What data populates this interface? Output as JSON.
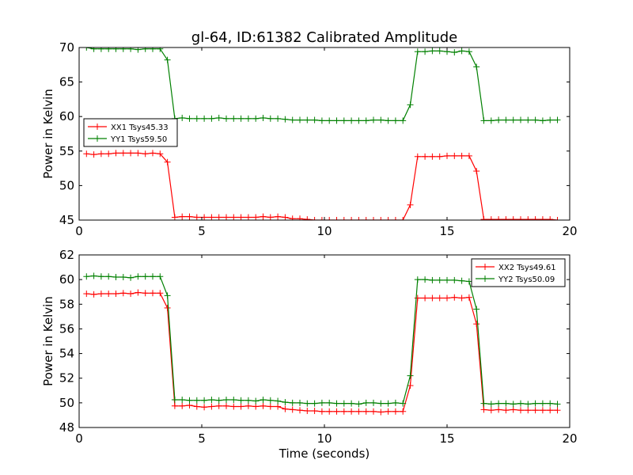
{
  "title": "gl-64, ID:61382 Calibrated Amplitude",
  "colors": {
    "xx": "#ff0000",
    "yy": "#008000"
  },
  "chart_data": [
    {
      "type": "line",
      "xlabel": "",
      "ylabel": "Power in Kelvin",
      "xlim": [
        0,
        20
      ],
      "ylim": [
        45,
        70
      ],
      "xticks": [
        0,
        5,
        10,
        15,
        20
      ],
      "yticks": [
        45,
        50,
        55,
        60,
        65,
        70
      ],
      "grid": false,
      "legend_position": "center-left",
      "x": [
        0.3,
        0.6,
        0.9,
        1.2,
        1.5,
        1.8,
        2.1,
        2.4,
        2.7,
        3.0,
        3.3,
        3.6,
        3.9,
        4.2,
        4.5,
        4.8,
        5.1,
        5.4,
        5.7,
        6.0,
        6.3,
        6.6,
        6.9,
        7.2,
        7.5,
        7.8,
        8.1,
        8.4,
        8.7,
        9.0,
        9.3,
        9.6,
        9.9,
        10.2,
        10.5,
        10.8,
        11.1,
        11.4,
        11.7,
        12.0,
        12.3,
        12.6,
        12.9,
        13.2,
        13.5,
        13.8,
        14.1,
        14.4,
        14.7,
        15.0,
        15.3,
        15.6,
        15.9,
        16.2,
        16.5,
        16.8,
        17.1,
        17.4,
        17.7,
        18.0,
        18.3,
        18.6,
        18.9,
        19.2,
        19.5
      ],
      "series": [
        {
          "name": "XX1 Tsys45.33",
          "color": "#ff0000",
          "values": [
            54.6,
            54.5,
            54.6,
            54.6,
            54.7,
            54.7,
            54.7,
            54.7,
            54.6,
            54.7,
            54.6,
            53.4,
            45.4,
            45.5,
            45.5,
            45.4,
            45.4,
            45.4,
            45.4,
            45.4,
            45.4,
            45.4,
            45.4,
            45.4,
            45.5,
            45.4,
            45.5,
            45.4,
            45.2,
            45.2,
            45.1,
            45.0,
            45.0,
            45.0,
            45.0,
            45.0,
            45.0,
            45.0,
            45.0,
            45.0,
            45.0,
            45.0,
            45.0,
            45.0,
            47.2,
            54.2,
            54.2,
            54.2,
            54.2,
            54.3,
            54.3,
            54.3,
            54.3,
            52.1,
            45.1,
            45.1,
            45.1,
            45.1,
            45.1,
            45.1,
            45.1,
            45.1,
            45.1,
            45.1,
            45.0
          ]
        },
        {
          "name": "YY1 Tsys59.50",
          "color": "#008000",
          "values": [
            70.0,
            69.8,
            69.8,
            69.8,
            69.8,
            69.8,
            69.8,
            69.7,
            69.8,
            69.8,
            69.8,
            68.2,
            59.7,
            59.8,
            59.7,
            59.7,
            59.7,
            59.7,
            59.8,
            59.7,
            59.7,
            59.7,
            59.7,
            59.7,
            59.8,
            59.7,
            59.7,
            59.6,
            59.5,
            59.5,
            59.5,
            59.5,
            59.4,
            59.4,
            59.4,
            59.4,
            59.4,
            59.4,
            59.4,
            59.5,
            59.5,
            59.4,
            59.4,
            59.4,
            61.7,
            69.4,
            69.4,
            69.5,
            69.5,
            69.4,
            69.3,
            69.5,
            69.4,
            67.2,
            59.4,
            59.4,
            59.5,
            59.5,
            59.5,
            59.5,
            59.5,
            59.5,
            59.4,
            59.5,
            59.5
          ]
        }
      ]
    },
    {
      "type": "line",
      "xlabel": "Time (seconds)",
      "ylabel": "Power in Kelvin",
      "xlim": [
        0,
        20
      ],
      "ylim": [
        48,
        62
      ],
      "xticks": [
        0,
        5,
        10,
        15,
        20
      ],
      "yticks": [
        48,
        50,
        52,
        54,
        56,
        58,
        60,
        62
      ],
      "grid": false,
      "legend_position": "top-right",
      "x": [
        0.3,
        0.6,
        0.9,
        1.2,
        1.5,
        1.8,
        2.1,
        2.4,
        2.7,
        3.0,
        3.3,
        3.6,
        3.9,
        4.2,
        4.5,
        4.8,
        5.1,
        5.4,
        5.7,
        6.0,
        6.3,
        6.6,
        6.9,
        7.2,
        7.5,
        7.8,
        8.1,
        8.4,
        8.7,
        9.0,
        9.3,
        9.6,
        9.9,
        10.2,
        10.5,
        10.8,
        11.1,
        11.4,
        11.7,
        12.0,
        12.3,
        12.6,
        12.9,
        13.2,
        13.5,
        13.8,
        14.1,
        14.4,
        14.7,
        15.0,
        15.3,
        15.6,
        15.9,
        16.2,
        16.5,
        16.8,
        17.1,
        17.4,
        17.7,
        18.0,
        18.3,
        18.6,
        18.9,
        19.2,
        19.5
      ],
      "series": [
        {
          "name": "XX2 Tsys49.61",
          "color": "#ff0000",
          "values": [
            58.85,
            58.8,
            58.85,
            58.85,
            58.85,
            58.9,
            58.85,
            58.95,
            58.9,
            58.9,
            58.9,
            57.7,
            49.75,
            49.75,
            49.8,
            49.7,
            49.65,
            49.7,
            49.75,
            49.75,
            49.7,
            49.7,
            49.75,
            49.7,
            49.75,
            49.7,
            49.7,
            49.5,
            49.45,
            49.4,
            49.35,
            49.35,
            49.3,
            49.3,
            49.3,
            49.3,
            49.3,
            49.3,
            49.3,
            49.3,
            49.25,
            49.3,
            49.3,
            49.3,
            51.4,
            58.5,
            58.5,
            58.5,
            58.5,
            58.5,
            58.55,
            58.5,
            58.55,
            56.4,
            49.45,
            49.4,
            49.45,
            49.4,
            49.45,
            49.4,
            49.4,
            49.4,
            49.4,
            49.4,
            49.4
          ]
        },
        {
          "name": "YY2 Tsys50.09",
          "color": "#008000",
          "values": [
            60.25,
            60.3,
            60.25,
            60.25,
            60.2,
            60.2,
            60.15,
            60.25,
            60.25,
            60.25,
            60.25,
            58.7,
            50.25,
            50.25,
            50.2,
            50.2,
            50.2,
            50.25,
            50.2,
            50.25,
            50.25,
            50.2,
            50.2,
            50.15,
            50.25,
            50.2,
            50.15,
            50.05,
            50.0,
            50.0,
            49.95,
            49.95,
            50.0,
            50.0,
            49.95,
            49.95,
            49.95,
            49.9,
            50.0,
            50.0,
            49.95,
            49.95,
            50.0,
            49.95,
            52.2,
            60.0,
            60.0,
            59.95,
            59.95,
            59.95,
            59.95,
            59.9,
            59.85,
            57.6,
            49.95,
            49.9,
            49.95,
            49.95,
            49.9,
            49.95,
            49.9,
            49.95,
            49.95,
            49.95,
            49.9
          ]
        }
      ]
    }
  ]
}
